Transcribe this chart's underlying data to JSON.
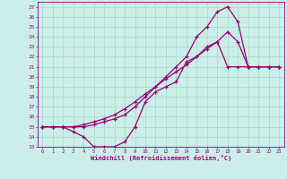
{
  "xlabel": "Windchill (Refroidissement éolien,°C)",
  "bg_color": "#cceee8",
  "grid_color": "#aaddcc",
  "line_color": "#990077",
  "marker": "+",
  "xlim": [
    -0.5,
    23.5
  ],
  "ylim": [
    13,
    27.5
  ],
  "xticks": [
    0,
    1,
    2,
    3,
    4,
    5,
    6,
    7,
    8,
    9,
    10,
    11,
    12,
    13,
    14,
    15,
    16,
    17,
    18,
    19,
    20,
    21,
    22,
    23
  ],
  "yticks": [
    13,
    14,
    15,
    16,
    17,
    18,
    19,
    20,
    21,
    22,
    23,
    24,
    25,
    26,
    27
  ],
  "line1_x": [
    0,
    1,
    2,
    3,
    4,
    5,
    6,
    7,
    8,
    9,
    10,
    11,
    12,
    13,
    14,
    15,
    16,
    17,
    18,
    19,
    20,
    21,
    22,
    23
  ],
  "line1_y": [
    15,
    15,
    15,
    14.5,
    14,
    13,
    13,
    13,
    13.5,
    15,
    17.5,
    18.5,
    19,
    19.5,
    21.5,
    22,
    23,
    23.5,
    21,
    21,
    21,
    21,
    21,
    21
  ],
  "line2_x": [
    0,
    1,
    2,
    3,
    4,
    5,
    6,
    7,
    8,
    9,
    10,
    11,
    12,
    13,
    14,
    15,
    16,
    17,
    18,
    19,
    20,
    21,
    22,
    23
  ],
  "line2_y": [
    15,
    15,
    15,
    15,
    15,
    15.2,
    15.5,
    15.8,
    16.2,
    17,
    18,
    19,
    20,
    21,
    22,
    24,
    25,
    26.5,
    27,
    25.5,
    21,
    21,
    21,
    21
  ],
  "line3_x": [
    0,
    1,
    2,
    3,
    4,
    5,
    6,
    7,
    8,
    9,
    10,
    11,
    12,
    13,
    14,
    15,
    16,
    17,
    18,
    19,
    20,
    21,
    22,
    23
  ],
  "line3_y": [
    15,
    15,
    15,
    15,
    15.2,
    15.5,
    15.8,
    16.2,
    16.8,
    17.5,
    18.3,
    19,
    19.8,
    20.5,
    21.2,
    22,
    22.8,
    23.5,
    24.5,
    23.5,
    21,
    21,
    21,
    21
  ]
}
